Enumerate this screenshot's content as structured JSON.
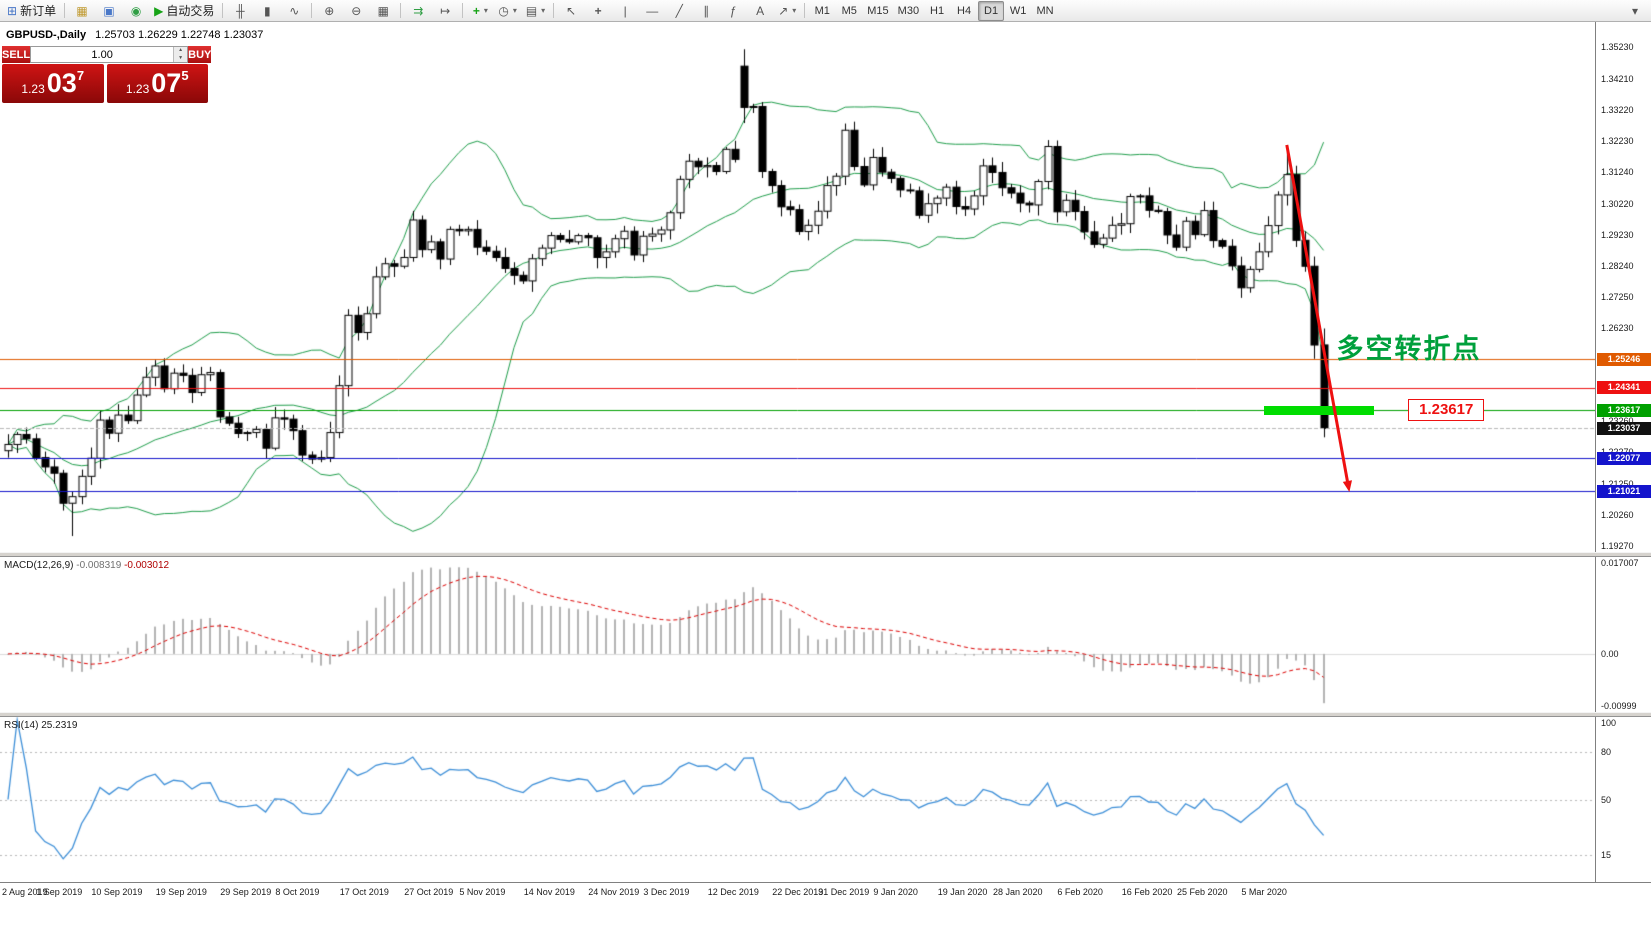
{
  "header": {
    "symbol_period": "GBPUSD-,Daily",
    "ohlc": "1.25703 1.26229 1.22748 1.23037"
  },
  "toolbar": {
    "groups": [
      {
        "name": "order",
        "items": [
          {
            "name": "new-order-button",
            "icon": "new-order-icon",
            "glyph": "⊞",
            "color": "#4a78c8",
            "label": "新订单"
          }
        ]
      },
      {
        "name": "apps",
        "items": [
          {
            "name": "metaeditor-button",
            "icon": "package-icon",
            "glyph": "▦",
            "color": "#c09a30"
          },
          {
            "name": "strategy-button",
            "icon": "profile-icon",
            "glyph": "▣",
            "color": "#4a78c8"
          },
          {
            "name": "refresh-button",
            "icon": "globe-icon",
            "glyph": "◉",
            "color": "#2f9e44"
          },
          {
            "name": "auto-trading-button",
            "icon": "play-icon",
            "glyph": "▶",
            "color": "#17a317",
            "label": "自动交易"
          }
        ]
      },
      {
        "name": "chart-type",
        "items": [
          {
            "name": "bar-chart-button",
            "icon": "bar-chart-icon",
            "glyph": "╫"
          },
          {
            "name": "candlestick-button",
            "icon": "candlestick-icon",
            "glyph": "▮"
          },
          {
            "name": "line-chart-button",
            "icon": "line-chart-icon",
            "glyph": "∿"
          }
        ]
      },
      {
        "name": "zoom",
        "items": [
          {
            "name": "zoom-in-button",
            "icon": "zoom-in-icon",
            "glyph": "⊕"
          },
          {
            "name": "zoom-out-button",
            "icon": "zoom-out-icon",
            "glyph": "⊖"
          },
          {
            "name": "tile-windows-button",
            "icon": "tile-windows-icon",
            "glyph": "▦"
          }
        ]
      },
      {
        "name": "navigate",
        "items": [
          {
            "name": "auto-scroll-button",
            "icon": "auto-scroll-icon",
            "glyph": "⇉",
            "color": "#2f9e44"
          },
          {
            "name": "chart-shift-button",
            "icon": "chart-shift-icon",
            "glyph": "↦"
          }
        ]
      },
      {
        "name": "insert",
        "items": [
          {
            "name": "indicators-button",
            "icon": "add-indicator-icon",
            "glyph": "+",
            "color": "#17a317",
            "dropdown": true
          },
          {
            "name": "periods-button",
            "icon": "clock-icon",
            "glyph": "◷",
            "dropdown": true
          },
          {
            "name": "templates-button",
            "icon": "template-icon",
            "glyph": "▤",
            "dropdown": true
          }
        ]
      },
      {
        "name": "line-studies",
        "items": [
          {
            "name": "cursor-button",
            "icon": "cursor-icon",
            "glyph": "↖"
          },
          {
            "name": "crosshair-button",
            "icon": "crosshair-icon",
            "glyph": "+"
          },
          {
            "name": "vertical-line-button",
            "icon": "vertical-line-icon",
            "glyph": "|"
          },
          {
            "name": "horizontal-line-button",
            "icon": "horizontal-line-icon",
            "glyph": "—"
          },
          {
            "name": "trendline-button",
            "icon": "trendline-icon",
            "glyph": "╱"
          },
          {
            "name": "channel-button",
            "icon": "channel-icon",
            "glyph": "∥"
          },
          {
            "name": "fibonacci-button",
            "icon": "fibonacci-icon",
            "glyph": "ƒ"
          },
          {
            "name": "text-button",
            "icon": "text-icon",
            "glyph": "A"
          },
          {
            "name": "arrows-button",
            "icon": "arrow-objects-icon",
            "glyph": "↗",
            "dropdown": true
          }
        ]
      },
      {
        "name": "timeframes",
        "items": [
          {
            "name": "timeframe-m1-button",
            "label": "M1"
          },
          {
            "name": "timeframe-m5-button",
            "label": "M5"
          },
          {
            "name": "timeframe-m15-button",
            "label": "M15"
          },
          {
            "name": "timeframe-m30-button",
            "label": "M30"
          },
          {
            "name": "timeframe-h1-button",
            "label": "H1"
          },
          {
            "name": "timeframe-h4-button",
            "label": "H4"
          },
          {
            "name": "timeframe-d1-button",
            "label": "D1",
            "active": true
          },
          {
            "name": "timeframe-w1-button",
            "label": "W1"
          },
          {
            "name": "timeframe-mn-button",
            "label": "MN"
          }
        ]
      },
      {
        "name": "overflow",
        "items": [
          {
            "name": "toolbar-overflow-button",
            "icon": "chevron-down-icon",
            "glyph": "▾"
          }
        ]
      }
    ]
  },
  "trade_panel": {
    "sell_label": "SELL",
    "buy_label": "BUY",
    "volume": "1.00",
    "sell_price": {
      "prefix": "1.23",
      "big": "03",
      "pip": "7"
    },
    "buy_price": {
      "prefix": "1.23",
      "big": "07",
      "pip": "5"
    }
  },
  "colors": {
    "bollinger": "#1f9e4b",
    "rsi_line": "#3d8fd8",
    "macd_histogram": "#b4b4b4",
    "macd_signal": "#dd0000",
    "up_candle_fill": "#ffffff",
    "down_candle_fill": "#000000",
    "candle_border": "#000000",
    "annotation_green": "#00a03c",
    "arrow_red": "#ee1111",
    "support_bar": "#00dd00",
    "current_price_line": "#b8b8b8",
    "current_tag_bg": "#111111"
  },
  "chart": {
    "price_axis": [
      "1.35230",
      "1.34210",
      "1.33220",
      "1.32230",
      "1.31240",
      "1.30220",
      "1.29230",
      "1.28240",
      "1.27250",
      "1.26230",
      "1.25240",
      "1.24250",
      "1.23260",
      "1.22270",
      "1.21250",
      "1.20260",
      "1.19270"
    ],
    "hlines": [
      {
        "price": 1.25246,
        "label": "1.25246",
        "color": "#e05a00"
      },
      {
        "price": 1.24341,
        "label": "1.24341",
        "color": "#ee1111"
      },
      {
        "price": 1.23617,
        "label": "1.23617",
        "color": "#00a000"
      },
      {
        "price": 1.22077,
        "label": "1.22077",
        "color": "#1414cc"
      },
      {
        "price": 1.21021,
        "label": "1.21021",
        "color": "#1414cc"
      }
    ],
    "current_price": {
      "price": 1.23037,
      "label": "1.23037"
    },
    "annotations": {
      "turning_point": {
        "text": "多空转折点",
        "x_index": 144.4,
        "price": 1.2628
      },
      "support_label": {
        "text": "1.23617",
        "x_index": 152.2,
        "price": 1.23617
      },
      "support_bar": {
        "from_index": 136.5,
        "to_index": 148.5,
        "price": 1.23617
      },
      "arrow": {
        "from_index": 139,
        "from_price": 1.321,
        "to_index": 145.8,
        "to_price": 1.21
      }
    },
    "candles": {
      "closes": [
        1.2252,
        1.2284,
        1.227,
        1.221,
        1.218,
        1.216,
        1.2064,
        1.2085,
        1.215,
        1.2208,
        1.233,
        1.2288,
        1.2346,
        1.2328,
        1.241,
        1.2467,
        1.2503,
        1.243,
        1.248,
        1.2473,
        1.2418,
        1.2475,
        1.2482,
        1.234,
        1.232,
        1.2287,
        1.229,
        1.23,
        1.224,
        1.2337,
        1.2333,
        1.2296,
        1.2218,
        1.2205,
        1.221,
        1.229,
        1.244,
        1.2665,
        1.261,
        1.267,
        1.2788,
        1.283,
        1.2822,
        1.285,
        1.297,
        1.2875,
        1.29,
        1.2845,
        1.294,
        1.2935,
        1.294,
        1.2883,
        1.287,
        1.285,
        1.2815,
        1.2793,
        1.2775,
        1.2846,
        1.288,
        1.292,
        1.2908,
        1.29,
        1.292,
        1.2913,
        1.285,
        1.2868,
        1.291,
        1.2934,
        1.2858,
        1.2918,
        1.2925,
        1.2938,
        1.2993,
        1.31,
        1.3158,
        1.314,
        1.3144,
        1.3125,
        1.3196,
        1.3164,
        1.333,
        1.3333,
        1.3125,
        1.308,
        1.3012,
        1.3003,
        1.2933,
        1.2953,
        1.2998,
        1.308,
        1.311,
        1.3257,
        1.3141,
        1.3082,
        1.317,
        1.3123,
        1.3103,
        1.3066,
        1.3063,
        1.2985,
        1.3022,
        1.304,
        1.3075,
        1.3013,
        1.3005,
        1.3047,
        1.3143,
        1.3122,
        1.3073,
        1.3056,
        1.3024,
        1.3018,
        1.3093,
        1.3205,
        1.2996,
        1.3033,
        1.2997,
        1.2932,
        1.2892,
        1.2912,
        1.2953,
        1.2958,
        1.3045,
        1.3047,
        1.3001,
        1.2997,
        1.2922,
        1.2883,
        1.2966,
        1.2923,
        1.3,
        1.2904,
        1.2886,
        1.2823,
        1.2753,
        1.2812,
        1.2868,
        1.2952,
        1.305,
        1.3115,
        1.2905,
        1.2822,
        1.257,
        1.23037
      ],
      "overrides": {
        "7": {
          "low": 1.1959
        },
        "80": {
          "open": 1.3462,
          "high": 1.3516,
          "low": 1.328
        },
        "139": {
          "high": 1.32
        },
        "142": {
          "open": 1.2822,
          "low": 1.2526
        },
        "143": {
          "open": 1.25703,
          "high": 1.26229,
          "low": 1.22748,
          "close": 1.23037
        }
      }
    },
    "x_labels": [
      {
        "text": "2 Aug 2019",
        "i": 0
      },
      {
        "text": "1 Sep 2019",
        "i": 6
      },
      {
        "text": "10 Sep 2019",
        "i": 12
      },
      {
        "text": "19 Sep 2019",
        "i": 19
      },
      {
        "text": "29 Sep 2019",
        "i": 26
      },
      {
        "text": "8 Oct 2019",
        "i": 32
      },
      {
        "text": "17 Oct 2019",
        "i": 39
      },
      {
        "text": "27 Oct 2019",
        "i": 46
      },
      {
        "text": "5 Nov 2019",
        "i": 52
      },
      {
        "text": "14 Nov 2019",
        "i": 59
      },
      {
        "text": "24 Nov 2019",
        "i": 66
      },
      {
        "text": "3 Dec 2019",
        "i": 72
      },
      {
        "text": "12 Dec 2019",
        "i": 79
      },
      {
        "text": "22 Dec 2019",
        "i": 86
      },
      {
        "text": "31 Dec 2019",
        "i": 91
      },
      {
        "text": "9 Jan 2020",
        "i": 97
      },
      {
        "text": "19 Jan 2020",
        "i": 104
      },
      {
        "text": "28 Jan 2020",
        "i": 110
      },
      {
        "text": "6 Feb 2020",
        "i": 117
      },
      {
        "text": "16 Feb 2020",
        "i": 124
      },
      {
        "text": "25 Feb 2020",
        "i": 130
      },
      {
        "text": "5 Mar 2020",
        "i": 137
      }
    ]
  },
  "macd": {
    "title": "MACD(12,26,9)",
    "value_main": "-0.008319",
    "value_signal": "-0.003012",
    "axis": [
      {
        "v": 0.017007,
        "label": "0.017007"
      },
      {
        "v": 0,
        "label": "0.00"
      },
      {
        "v": -0.00999,
        "label": "-0.00999"
      }
    ]
  },
  "rsi": {
    "title": "RSI(14)",
    "value": "25.2319",
    "axis": [
      {
        "v": 100,
        "label": "100"
      },
      {
        "v": 80,
        "label": "80"
      },
      {
        "v": 50,
        "label": "50"
      },
      {
        "v": 15,
        "label": "15"
      }
    ],
    "levels": [
      80,
      50,
      15
    ]
  }
}
